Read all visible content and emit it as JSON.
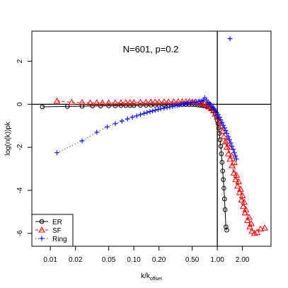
{
  "chart_data": {
    "type": "scatter",
    "title": "N=601, p=0.2",
    "xlabel_main": "k/k",
    "xlabel_sub": "offset",
    "ylabel": "log(n(k))pk",
    "x_log_scale": true,
    "xlim": [
      0.006,
      4.4
    ],
    "ylim": [
      -6.6,
      3.4
    ],
    "x_ticks": [
      0.01,
      0.02,
      0.05,
      0.1,
      0.2,
      0.5,
      1,
      2
    ],
    "x_tick_labels": [
      "0.01",
      "0.02",
      "0.05",
      "0.10",
      "0.20",
      "0.50",
      "1.00",
      "2.00"
    ],
    "y_ticks": [
      -6,
      -4,
      -2,
      0,
      2
    ],
    "y_tick_labels": [
      "-6",
      "-4",
      "-2",
      "0",
      "2"
    ],
    "reference_lines": {
      "x": 1,
      "y": 0
    },
    "grid": false,
    "legend_position": "bottom-left",
    "series": [
      {
        "name": "ER",
        "color": "#000000",
        "marker": "circle",
        "line": "solid",
        "points": [
          [
            0.008,
            -0.12
          ],
          [
            0.016,
            -0.1
          ],
          [
            0.024,
            -0.09
          ],
          [
            0.032,
            -0.08
          ],
          [
            0.04,
            -0.08
          ],
          [
            0.05,
            -0.07
          ],
          [
            0.06,
            -0.07
          ],
          [
            0.07,
            -0.06
          ],
          [
            0.08,
            -0.06
          ],
          [
            0.09,
            -0.06
          ],
          [
            0.1,
            -0.06
          ],
          [
            0.12,
            -0.05
          ],
          [
            0.14,
            -0.05
          ],
          [
            0.16,
            -0.04
          ],
          [
            0.18,
            -0.04
          ],
          [
            0.2,
            -0.04
          ],
          [
            0.23,
            -0.03
          ],
          [
            0.26,
            -0.03
          ],
          [
            0.3,
            -0.02
          ],
          [
            0.34,
            -0.02
          ],
          [
            0.38,
            -0.02
          ],
          [
            0.42,
            -0.01
          ],
          [
            0.46,
            -0.01
          ],
          [
            0.5,
            -0.01
          ],
          [
            0.54,
            -0.02
          ],
          [
            0.58,
            -0.03
          ],
          [
            0.62,
            -0.05
          ],
          [
            0.66,
            -0.06
          ],
          [
            0.7,
            -0.08
          ],
          [
            0.74,
            -0.1
          ],
          [
            0.78,
            -0.13
          ],
          [
            0.82,
            -0.17
          ],
          [
            0.86,
            -0.22
          ],
          [
            0.9,
            -0.3
          ],
          [
            0.94,
            -0.42
          ],
          [
            0.98,
            -0.6
          ],
          [
            1.0,
            -0.75
          ],
          [
            1.02,
            -0.9
          ],
          [
            1.04,
            -1.1
          ],
          [
            1.06,
            -1.35
          ],
          [
            1.08,
            -1.65
          ],
          [
            1.1,
            -1.95
          ],
          [
            1.12,
            -2.3
          ],
          [
            1.14,
            -2.7
          ],
          [
            1.16,
            -3.1
          ],
          [
            1.18,
            -3.5
          ],
          [
            1.2,
            -3.9
          ],
          [
            1.22,
            -4.4
          ],
          [
            1.24,
            -4.9
          ],
          [
            1.27,
            -5.7
          ],
          [
            1.3,
            -5.85
          ]
        ]
      },
      {
        "name": "SF",
        "color": "#ff0000",
        "marker": "triangle",
        "line": "dashed",
        "points": [
          [
            0.012,
            0.15
          ],
          [
            0.018,
            0.09
          ],
          [
            0.024,
            0.08
          ],
          [
            0.03,
            0.07
          ],
          [
            0.036,
            0.07
          ],
          [
            0.042,
            0.07
          ],
          [
            0.05,
            0.07
          ],
          [
            0.06,
            0.07
          ],
          [
            0.07,
            0.07
          ],
          [
            0.08,
            0.08
          ],
          [
            0.09,
            0.08
          ],
          [
            0.1,
            0.08
          ],
          [
            0.12,
            0.09
          ],
          [
            0.14,
            0.09
          ],
          [
            0.16,
            0.1
          ],
          [
            0.18,
            0.1
          ],
          [
            0.2,
            0.1
          ],
          [
            0.23,
            0.11
          ],
          [
            0.26,
            0.11
          ],
          [
            0.3,
            0.12
          ],
          [
            0.34,
            0.12
          ],
          [
            0.38,
            0.12
          ],
          [
            0.42,
            0.12
          ],
          [
            0.46,
            0.12
          ],
          [
            0.5,
            0.11
          ],
          [
            0.55,
            0.1
          ],
          [
            0.6,
            0.08
          ],
          [
            0.65,
            0.05
          ],
          [
            0.7,
            0.02
          ],
          [
            0.75,
            -0.05
          ],
          [
            0.8,
            -0.12
          ],
          [
            0.85,
            -0.2
          ],
          [
            0.9,
            -0.3
          ],
          [
            0.95,
            -0.45
          ],
          [
            1.0,
            -0.6
          ],
          [
            1.05,
            -0.8
          ],
          [
            1.1,
            -1.0
          ],
          [
            1.15,
            -1.25
          ],
          [
            1.2,
            -1.5
          ],
          [
            1.25,
            -1.75
          ],
          [
            1.3,
            -2.0
          ],
          [
            1.36,
            -2.3
          ],
          [
            1.42,
            -2.55
          ],
          [
            1.5,
            -2.85
          ],
          [
            1.58,
            -3.2
          ],
          [
            1.66,
            -3.5
          ],
          [
            1.75,
            -3.8
          ],
          [
            1.85,
            -4.1
          ],
          [
            1.95,
            -4.45
          ],
          [
            2.05,
            -4.75
          ],
          [
            2.15,
            -5.05
          ],
          [
            2.3,
            -5.4
          ],
          [
            2.45,
            -5.7
          ],
          [
            2.6,
            -5.9
          ],
          [
            2.8,
            -6.0
          ],
          [
            3.0,
            -5.95
          ],
          [
            3.3,
            -5.8
          ],
          [
            3.7,
            -5.75
          ],
          [
            1.32,
            -1.7
          ],
          [
            1.4,
            -2.0
          ],
          [
            1.48,
            -2.4
          ],
          [
            1.6,
            -2.7
          ],
          [
            1.7,
            -3.3
          ],
          [
            1.8,
            -3.6
          ],
          [
            1.9,
            -3.95
          ],
          [
            2.0,
            -4.25
          ],
          [
            2.1,
            -4.55
          ],
          [
            2.2,
            -4.9
          ],
          [
            2.4,
            -5.25
          ],
          [
            2.55,
            -5.55
          ]
        ]
      },
      {
        "name": "Ring",
        "color": "#0000ff",
        "marker": "plus",
        "line": "dotted",
        "points": [
          [
            0.012,
            -2.25
          ],
          [
            0.024,
            -1.7
          ],
          [
            0.036,
            -1.3
          ],
          [
            0.048,
            -1.05
          ],
          [
            0.06,
            -0.9
          ],
          [
            0.072,
            -0.78
          ],
          [
            0.084,
            -0.68
          ],
          [
            0.096,
            -0.6
          ],
          [
            0.108,
            -0.54
          ],
          [
            0.12,
            -0.48
          ],
          [
            0.132,
            -0.43
          ],
          [
            0.144,
            -0.38
          ],
          [
            0.156,
            -0.34
          ],
          [
            0.168,
            -0.31
          ],
          [
            0.18,
            -0.28
          ],
          [
            0.195,
            -0.24
          ],
          [
            0.21,
            -0.21
          ],
          [
            0.23,
            -0.18
          ],
          [
            0.25,
            -0.15
          ],
          [
            0.27,
            -0.12
          ],
          [
            0.29,
            -0.1
          ],
          [
            0.31,
            -0.07
          ],
          [
            0.33,
            -0.05
          ],
          [
            0.35,
            -0.03
          ],
          [
            0.37,
            -0.01
          ],
          [
            0.39,
            0.01
          ],
          [
            0.41,
            0.03
          ],
          [
            0.43,
            0.04
          ],
          [
            0.45,
            0.06
          ],
          [
            0.47,
            0.07
          ],
          [
            0.5,
            0.08
          ],
          [
            0.53,
            0.1
          ],
          [
            0.56,
            0.11
          ],
          [
            0.59,
            0.12
          ],
          [
            0.62,
            0.13
          ],
          [
            0.65,
            0.15
          ],
          [
            0.68,
            0.2
          ],
          [
            0.71,
            0.3
          ],
          [
            0.74,
            0.2
          ],
          [
            0.77,
            0.1
          ],
          [
            0.8,
            0.05
          ],
          [
            0.83,
            0.0
          ],
          [
            0.86,
            -0.08
          ],
          [
            0.89,
            -0.15
          ],
          [
            0.92,
            -0.22
          ],
          [
            0.95,
            -0.3
          ],
          [
            0.98,
            -0.38
          ],
          [
            1.02,
            -0.48
          ],
          [
            1.06,
            -0.6
          ],
          [
            1.1,
            -0.72
          ],
          [
            1.14,
            -0.85
          ],
          [
            1.18,
            -0.98
          ],
          [
            1.22,
            -1.1
          ],
          [
            1.26,
            -1.22
          ],
          [
            1.3,
            -1.35
          ],
          [
            1.35,
            -1.5
          ],
          [
            1.4,
            -1.65
          ],
          [
            1.45,
            -1.8
          ],
          [
            1.5,
            -1.95
          ],
          [
            1.55,
            -2.1
          ],
          [
            1.6,
            -2.25
          ],
          [
            1.65,
            -2.4
          ],
          [
            1.7,
            -2.55
          ],
          [
            1.42,
            3.05
          ]
        ]
      }
    ]
  }
}
